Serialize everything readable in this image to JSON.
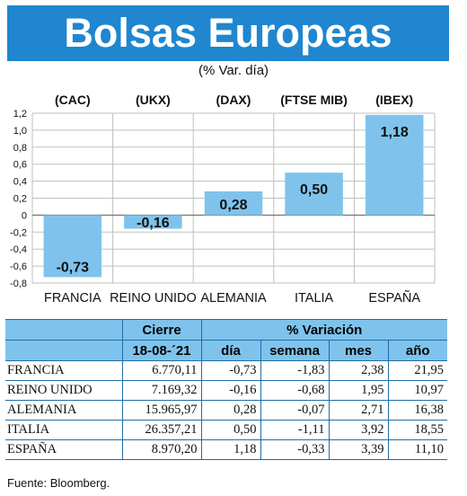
{
  "title": "Bolsas Europeas",
  "subtitle": "(% Var. día)",
  "chart_data": {
    "type": "bar",
    "categories": [
      "FRANCIA",
      "REINO UNIDO",
      "ALEMANIA",
      "ITALIA",
      "ESPAÑA"
    ],
    "index_labels": [
      "(CAC)",
      "(UKX)",
      "(DAX)",
      "(FTSE MIB)",
      "(IBEX)"
    ],
    "values": [
      -0.73,
      -0.16,
      0.28,
      0.5,
      1.18
    ],
    "value_labels": [
      "-0,73",
      "-0,16",
      "0,28",
      "0,50",
      "1,18"
    ],
    "yticks": [
      1.2,
      1.0,
      0.8,
      0.6,
      0.4,
      0.2,
      0,
      -0.2,
      -0.4,
      -0.6,
      -0.8
    ],
    "ytick_labels": [
      "1,2",
      "1,0",
      "0,8",
      "0,6",
      "0,4",
      "0,2",
      "0",
      "-0,2",
      "-0,4",
      "-0,6",
      "-0,8"
    ],
    "ylim": [
      -0.8,
      1.2
    ],
    "grid": true,
    "bar_color": "#7fc3ec",
    "grid_color": "#bfbfbf"
  },
  "table": {
    "header_cierre": "Cierre",
    "header_variacion": "% Variación",
    "header_date": "18-08-´21",
    "header_dia": "día",
    "header_semana": "semana",
    "header_mes": "mes",
    "header_ano": "año",
    "rows": [
      {
        "name": "FRANCIA",
        "cierre": "6.770,11",
        "dia": "-0,73",
        "semana": "-1,83",
        "mes": "2,38",
        "ano": "21,95"
      },
      {
        "name": "REINO UNIDO",
        "cierre": "7.169,32",
        "dia": "-0,16",
        "semana": "-0,68",
        "mes": "1,95",
        "ano": "10,97"
      },
      {
        "name": "ALEMANIA",
        "cierre": "15.965,97",
        "dia": "0,28",
        "semana": "-0,07",
        "mes": "2,71",
        "ano": "16,38"
      },
      {
        "name": "ITALIA",
        "cierre": "26.357,21",
        "dia": "0,50",
        "semana": "-1,11",
        "mes": "3,92",
        "ano": "18,55"
      },
      {
        "name": "ESPAÑA",
        "cierre": "8.970,20",
        "dia": "1,18",
        "semana": "-0,33",
        "mes": "3,39",
        "ano": "11,10"
      }
    ]
  },
  "source": "Fuente: Bloomberg."
}
